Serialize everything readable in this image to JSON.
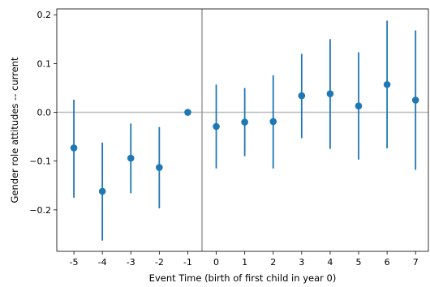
{
  "chart_data": {
    "type": "scatter",
    "title": "",
    "xlabel": "Event Time (birth of first child in year 0)",
    "ylabel": "Gender role attitudes -- current",
    "x_ticks": [
      -5,
      -4,
      -3,
      -2,
      -1,
      0,
      1,
      2,
      3,
      4,
      5,
      6,
      7
    ],
    "x_tick_labels": [
      "-5",
      "-4",
      "-3",
      "-2",
      "-1",
      "0",
      "1",
      "2",
      "3",
      "4",
      "5",
      "6",
      "7"
    ],
    "y_ticks": [
      -0.2,
      -0.1,
      0.0,
      0.1,
      0.2
    ],
    "y_tick_labels": [
      "−0.2",
      "−0.1",
      "0.0",
      "0.1",
      "0.2"
    ],
    "xlim": [
      -5.6,
      7.45
    ],
    "ylim": [
      -0.285,
      0.212
    ],
    "reference_lines": {
      "horizontal_y": 0.0,
      "vertical_x": -0.5
    },
    "color": "#1f77b4",
    "reference_line_color": "#bbbbbb",
    "vertical_line_color": "#999999",
    "grid": false,
    "series": [
      {
        "x": [
          -5,
          -4,
          -3,
          -2,
          -1,
          0,
          1,
          2,
          3,
          4,
          5,
          6,
          7
        ],
        "y": [
          -0.073,
          -0.162,
          -0.094,
          -0.113,
          0.0,
          -0.029,
          -0.02,
          -0.019,
          0.034,
          0.038,
          0.013,
          0.057,
          0.025
        ],
        "ci_low": [
          -0.175,
          -0.263,
          -0.166,
          -0.197,
          null,
          -0.115,
          -0.09,
          -0.115,
          -0.053,
          -0.075,
          -0.097,
          -0.074,
          -0.118
        ],
        "ci_high": [
          0.026,
          -0.062,
          -0.023,
          -0.03,
          null,
          0.057,
          0.05,
          0.076,
          0.12,
          0.15,
          0.123,
          0.188,
          0.168
        ]
      }
    ]
  }
}
